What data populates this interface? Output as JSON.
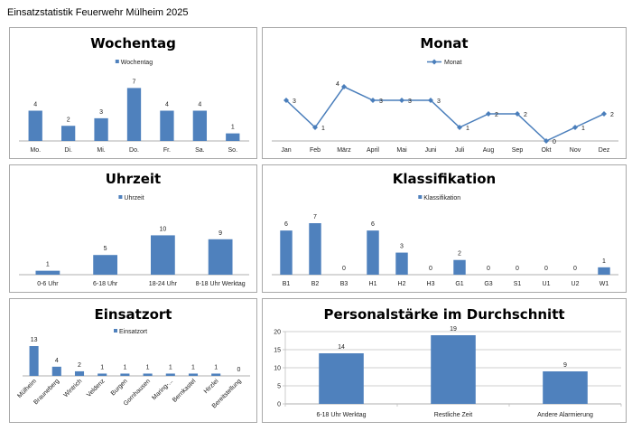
{
  "page": {
    "title": "Einsatzstatistik Feuerwehr Mülheim 2025"
  },
  "colors": {
    "bar": "#4f81bd",
    "line": "#4a7ebb",
    "axis": "#bfbfbf",
    "grid": "#bfbfbf",
    "border": "#a9a9a9"
  },
  "chart_data": [
    {
      "id": "wochentag",
      "type": "bar",
      "title": "Wochentag",
      "legend": {
        "label": "Wochentag",
        "position": "top"
      },
      "categories": [
        "Mo.",
        "Di.",
        "Mi.",
        "Do.",
        "Fr.",
        "Sa.",
        "So."
      ],
      "values": [
        4,
        2,
        3,
        7,
        4,
        4,
        1
      ],
      "ylim": [
        0,
        8
      ],
      "grid": false,
      "data_labels": true
    },
    {
      "id": "monat",
      "type": "line",
      "title": "Monat",
      "legend": {
        "label": "Monat",
        "position": "top"
      },
      "categories": [
        "Jan",
        "Feb",
        "März",
        "April",
        "Mai",
        "Juni",
        "Juli",
        "Aug",
        "Sep",
        "Okt",
        "Nov",
        "Dez"
      ],
      "values": [
        3,
        1,
        4,
        3,
        3,
        3,
        1,
        2,
        2,
        0,
        1,
        2
      ],
      "ylim": [
        0,
        5
      ],
      "grid": false,
      "data_labels": true
    },
    {
      "id": "uhrzeit",
      "type": "bar",
      "title": "Uhrzeit",
      "legend": {
        "label": "Uhrzeit",
        "position": "top"
      },
      "categories": [
        "0-6 Uhr",
        "6-18 Uhr",
        "18-24 Uhr",
        "8-18 Uhr Werktag"
      ],
      "values": [
        1,
        5,
        10,
        9
      ],
      "ylim": [
        0,
        14
      ],
      "grid": false,
      "data_labels": true
    },
    {
      "id": "klassifikation",
      "type": "bar",
      "title": "Klassifikation",
      "legend": {
        "label": "Klassifikation",
        "position": "top"
      },
      "categories": [
        "B1",
        "B2",
        "B3",
        "H1",
        "H2",
        "H3",
        "G1",
        "G3",
        "S1",
        "U1",
        "U2",
        "W1"
      ],
      "values": [
        6,
        7,
        0,
        6,
        3,
        0,
        2,
        0,
        0,
        0,
        0,
        1
      ],
      "ylim": [
        0,
        7
      ],
      "grid": false,
      "data_labels": true
    },
    {
      "id": "einsatzort",
      "type": "bar",
      "title": "Einsatzort",
      "legend": {
        "label": "Einsatzort",
        "position": "top"
      },
      "categories": [
        "Mülheim",
        "Brauneberg",
        "Wintrich",
        "Veldenz",
        "Burgen",
        "Gornhausen",
        "Maring-...",
        "Bernkastel",
        "Hirzlei",
        "Bereitstellung"
      ],
      "values": [
        13,
        4,
        2,
        1,
        1,
        1,
        1,
        1,
        1,
        0
      ],
      "ylim": [
        0,
        13
      ],
      "grid": false,
      "data_labels": true,
      "xtick_rotation": -45
    },
    {
      "id": "personalstaerke",
      "type": "bar",
      "title": "Personalstärke im Durchschnitt",
      "legend": null,
      "categories": [
        "6-18 Uhr Werktag",
        "Restliche Zeit",
        "Andere Alarmierung"
      ],
      "values": [
        14,
        19,
        9
      ],
      "ylim": [
        0,
        20
      ],
      "yticks": [
        0,
        5,
        10,
        15,
        20
      ],
      "grid": true,
      "data_labels": true
    }
  ]
}
